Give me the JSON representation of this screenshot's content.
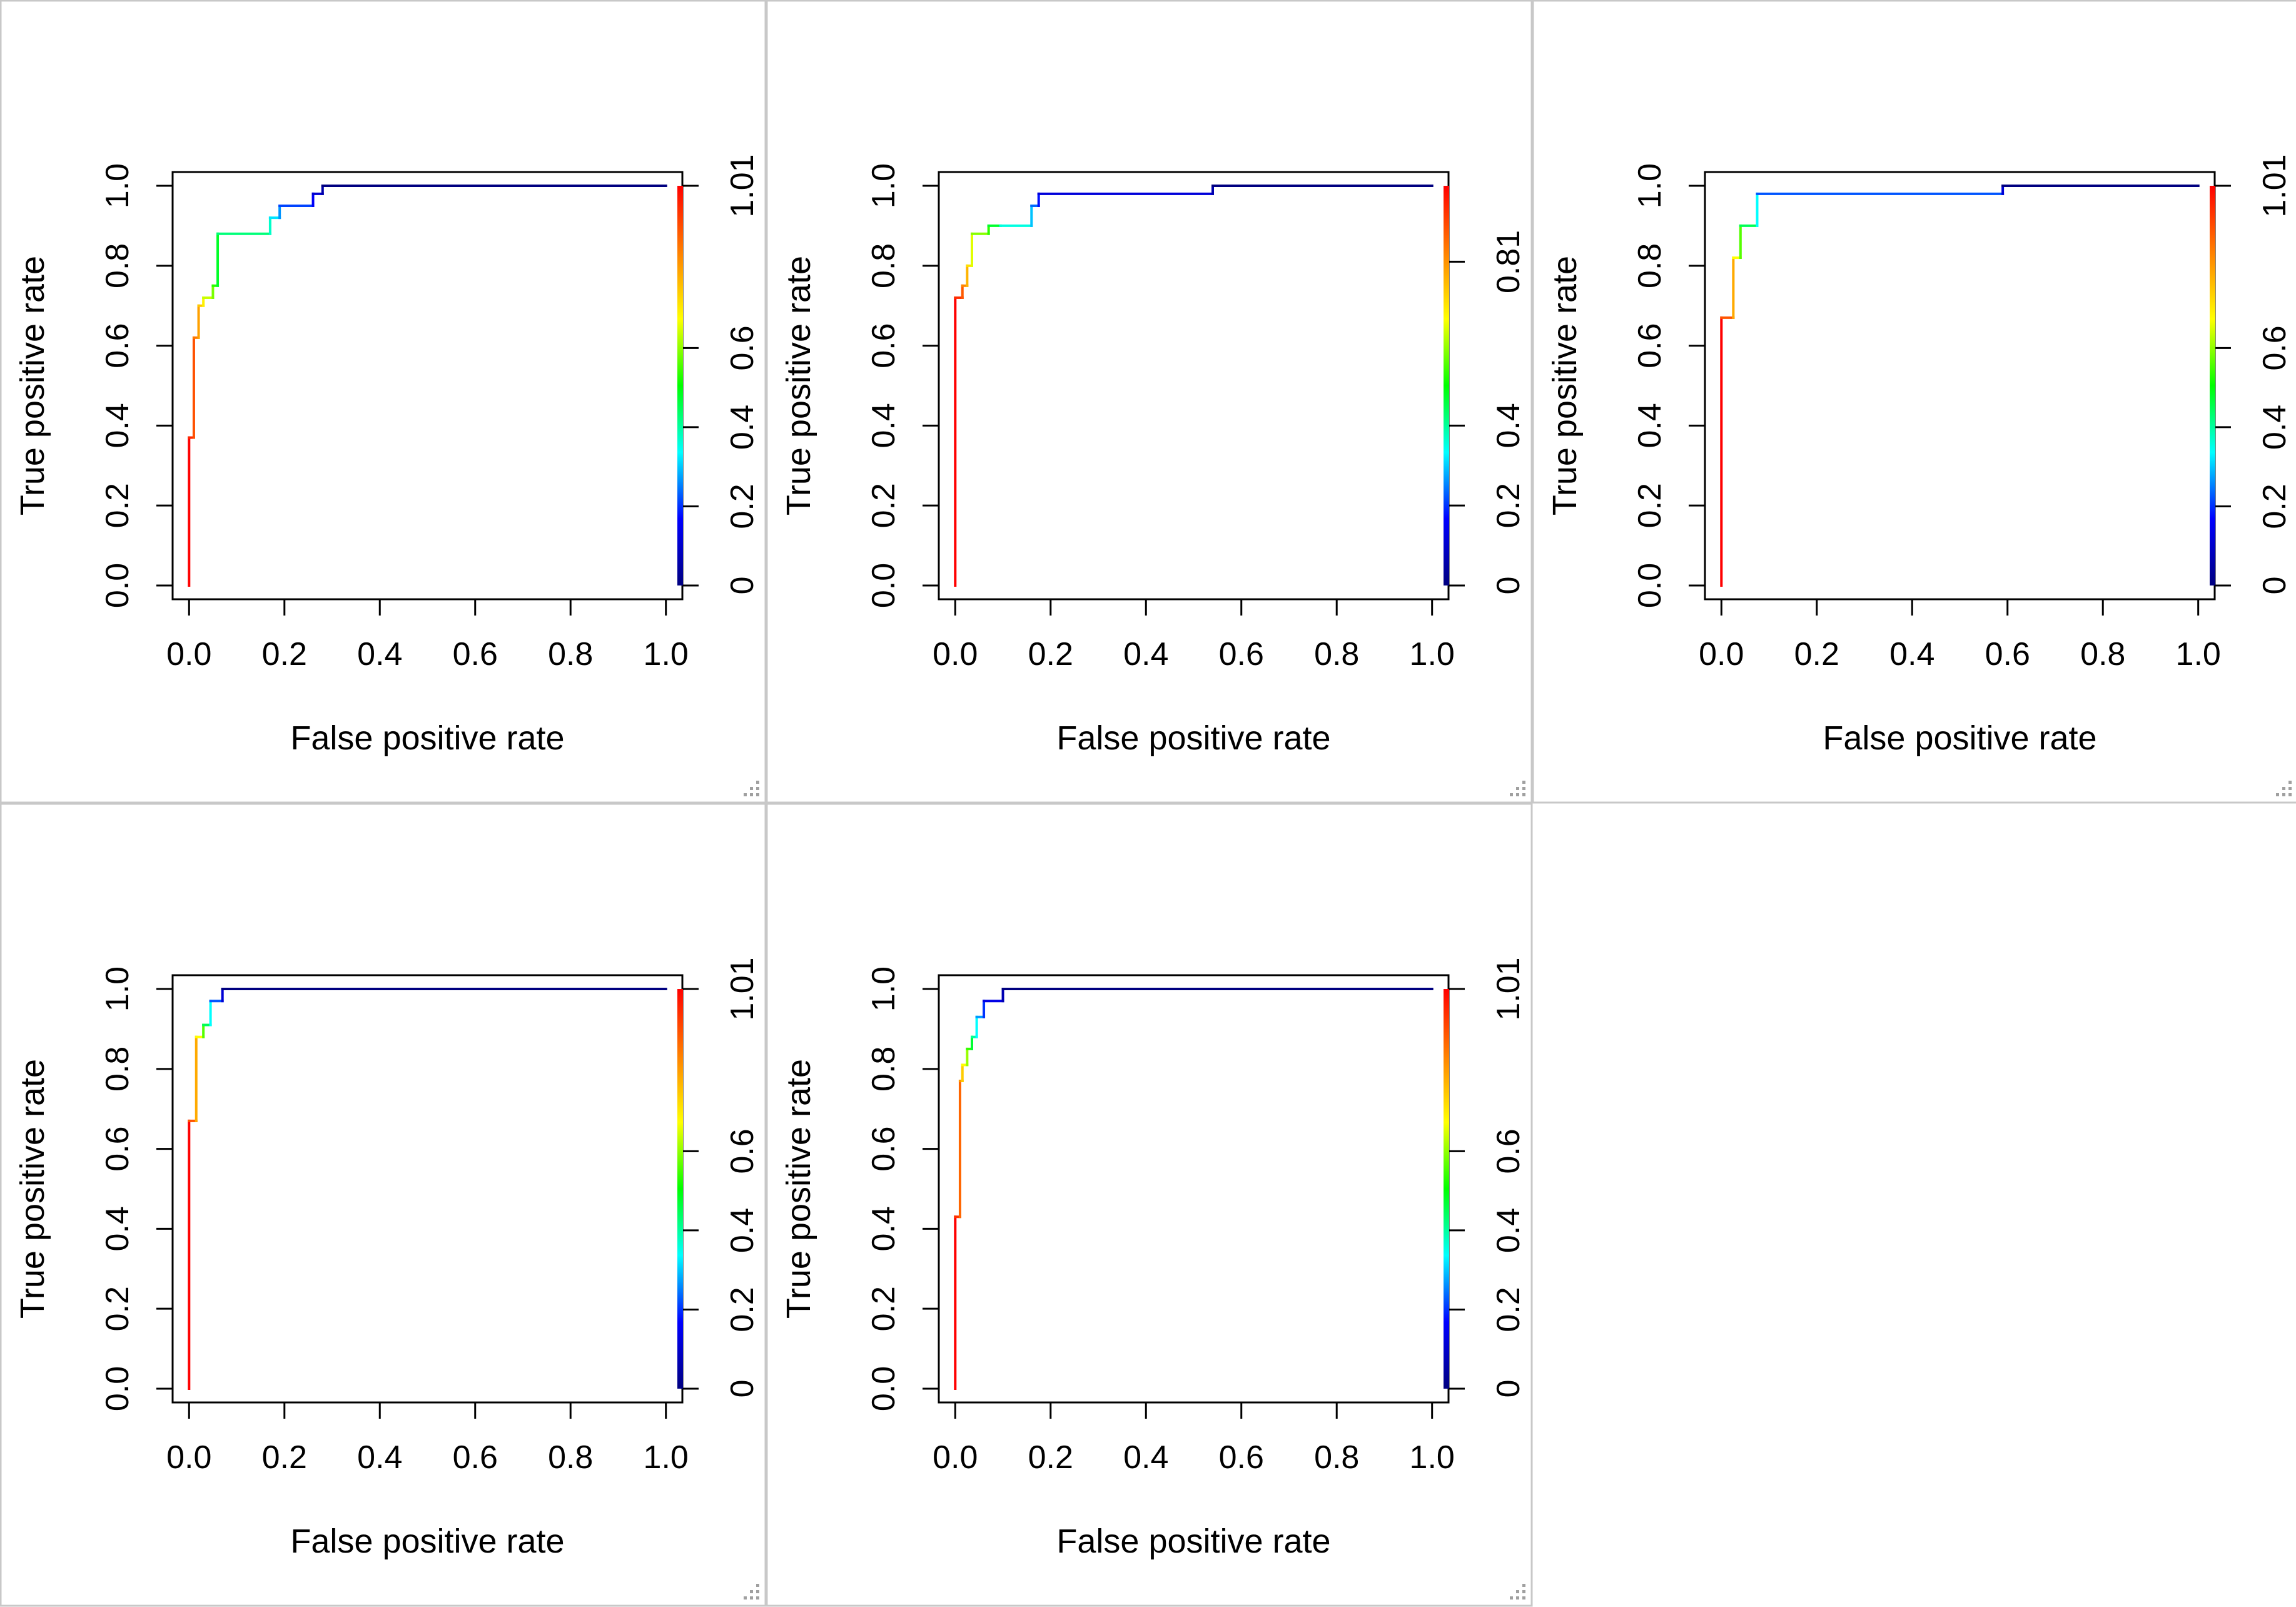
{
  "colors": {
    "background": "#ffffff",
    "panel_border": "#c8c8c8",
    "axis": "#000000",
    "grip": "#a0a0a0",
    "colormap": [
      "#ff0000",
      "#ff8000",
      "#ffff00",
      "#00ff00",
      "#00ffff",
      "#0000ff",
      "#000080"
    ]
  },
  "icons": {
    "resize_grip": "resize-grip-icon"
  },
  "chart_data": [
    {
      "type": "line",
      "xlabel": "False positive rate",
      "ylabel": "True positive rate",
      "xlim": [
        0,
        1
      ],
      "ylim": [
        0,
        1
      ],
      "x_ticks": [
        "0.0",
        "0.2",
        "0.4",
        "0.6",
        "0.8",
        "1.0"
      ],
      "y_ticks": [
        "0.0",
        "0.2",
        "0.4",
        "0.6",
        "0.8",
        "1.0"
      ],
      "colorbar": {
        "ticks": [
          "0",
          "0.2",
          "0.4",
          "0.6",
          "1.01"
        ],
        "values": [
          0,
          0.2,
          0.4,
          0.6,
          1.01
        ],
        "range": [
          0,
          1.01
        ]
      },
      "grid": false,
      "series": [
        {
          "x": [
            0,
            0,
            0.01,
            0.01,
            0.02,
            0.02,
            0.03,
            0.03,
            0.05,
            0.05,
            0.06,
            0.06,
            0.17,
            0.17,
            0.19,
            0.19,
            0.26,
            0.26,
            0.28,
            0.28,
            1.0
          ],
          "y": [
            0,
            0.37,
            0.37,
            0.62,
            0.62,
            0.7,
            0.7,
            0.72,
            0.72,
            0.75,
            0.75,
            0.88,
            0.88,
            0.92,
            0.92,
            0.95,
            0.95,
            0.98,
            0.98,
            1.0,
            1.0
          ]
        }
      ]
    },
    {
      "type": "line",
      "xlabel": "False positive rate",
      "ylabel": "True positive rate",
      "xlim": [
        0,
        1
      ],
      "ylim": [
        0,
        1
      ],
      "x_ticks": [
        "0.0",
        "0.2",
        "0.4",
        "0.6",
        "0.8",
        "1.0"
      ],
      "y_ticks": [
        "0.0",
        "0.2",
        "0.4",
        "0.6",
        "0.8",
        "1.0"
      ],
      "colorbar": {
        "ticks": [
          "0",
          "0.2",
          "0.4",
          "0.81"
        ],
        "values": [
          0,
          0.2,
          0.4,
          0.81
        ],
        "range": [
          0,
          1.0
        ]
      },
      "grid": false,
      "series": [
        {
          "x": [
            0,
            0,
            0.015,
            0.015,
            0.025,
            0.025,
            0.035,
            0.035,
            0.07,
            0.07,
            0.095,
            0.095,
            0.16,
            0.16,
            0.175,
            0.175,
            0.54,
            0.54,
            1.0
          ],
          "y": [
            0,
            0.72,
            0.72,
            0.75,
            0.75,
            0.8,
            0.8,
            0.88,
            0.88,
            0.9,
            0.9,
            0.9,
            0.9,
            0.95,
            0.95,
            0.98,
            0.98,
            1.0,
            1.0
          ]
        }
      ]
    },
    {
      "type": "line",
      "xlabel": "False positive rate",
      "ylabel": "True positive rate",
      "xlim": [
        0,
        1
      ],
      "ylim": [
        0,
        1
      ],
      "x_ticks": [
        "0.0",
        "0.2",
        "0.4",
        "0.6",
        "0.8",
        "1.0"
      ],
      "y_ticks": [
        "0.0",
        "0.2",
        "0.4",
        "0.6",
        "0.8",
        "1.0"
      ],
      "colorbar": {
        "ticks": [
          "0",
          "0.2",
          "0.4",
          "0.6",
          "1.01"
        ],
        "values": [
          0,
          0.2,
          0.4,
          0.6,
          1.01
        ],
        "range": [
          0,
          1.01
        ]
      },
      "grid": false,
      "series": [
        {
          "x": [
            0,
            0,
            0.025,
            0.025,
            0.04,
            0.04,
            0.075,
            0.075,
            0.59,
            0.59,
            1.0
          ],
          "y": [
            0,
            0.67,
            0.67,
            0.82,
            0.82,
            0.9,
            0.9,
            0.98,
            0.98,
            1.0,
            1.0
          ]
        }
      ]
    },
    {
      "type": "line",
      "xlabel": "False positive rate",
      "ylabel": "True positive rate",
      "xlim": [
        0,
        1
      ],
      "ylim": [
        0,
        1
      ],
      "x_ticks": [
        "0.0",
        "0.2",
        "0.4",
        "0.6",
        "0.8",
        "1.0"
      ],
      "y_ticks": [
        "0.0",
        "0.2",
        "0.4",
        "0.6",
        "0.8",
        "1.0"
      ],
      "colorbar": {
        "ticks": [
          "0",
          "0.2",
          "0.4",
          "0.6",
          "1.01"
        ],
        "values": [
          0,
          0.2,
          0.4,
          0.6,
          1.01
        ],
        "range": [
          0,
          1.01
        ]
      },
      "grid": false,
      "series": [
        {
          "x": [
            0,
            0,
            0.015,
            0.015,
            0.03,
            0.03,
            0.045,
            0.045,
            0.07,
            0.07,
            1.0
          ],
          "y": [
            0,
            0.67,
            0.67,
            0.88,
            0.88,
            0.91,
            0.91,
            0.97,
            0.97,
            1.0,
            1.0
          ]
        }
      ]
    },
    {
      "type": "line",
      "xlabel": "False positive rate",
      "ylabel": "True positive rate",
      "xlim": [
        0,
        1
      ],
      "ylim": [
        0,
        1
      ],
      "x_ticks": [
        "0.0",
        "0.2",
        "0.4",
        "0.6",
        "0.8",
        "1.0"
      ],
      "y_ticks": [
        "0.0",
        "0.2",
        "0.4",
        "0.6",
        "0.8",
        "1.0"
      ],
      "colorbar": {
        "ticks": [
          "0",
          "0.2",
          "0.4",
          "0.6",
          "1.01"
        ],
        "values": [
          0,
          0.2,
          0.4,
          0.6,
          1.01
        ],
        "range": [
          0,
          1.01
        ]
      },
      "grid": false,
      "series": [
        {
          "x": [
            0,
            0,
            0.01,
            0.01,
            0.015,
            0.015,
            0.025,
            0.025,
            0.035,
            0.035,
            0.045,
            0.045,
            0.06,
            0.06,
            0.1,
            0.1,
            1.0
          ],
          "y": [
            0,
            0.43,
            0.43,
            0.77,
            0.77,
            0.81,
            0.81,
            0.85,
            0.85,
            0.88,
            0.88,
            0.93,
            0.93,
            0.97,
            0.97,
            1.0,
            1.0
          ]
        }
      ]
    }
  ]
}
